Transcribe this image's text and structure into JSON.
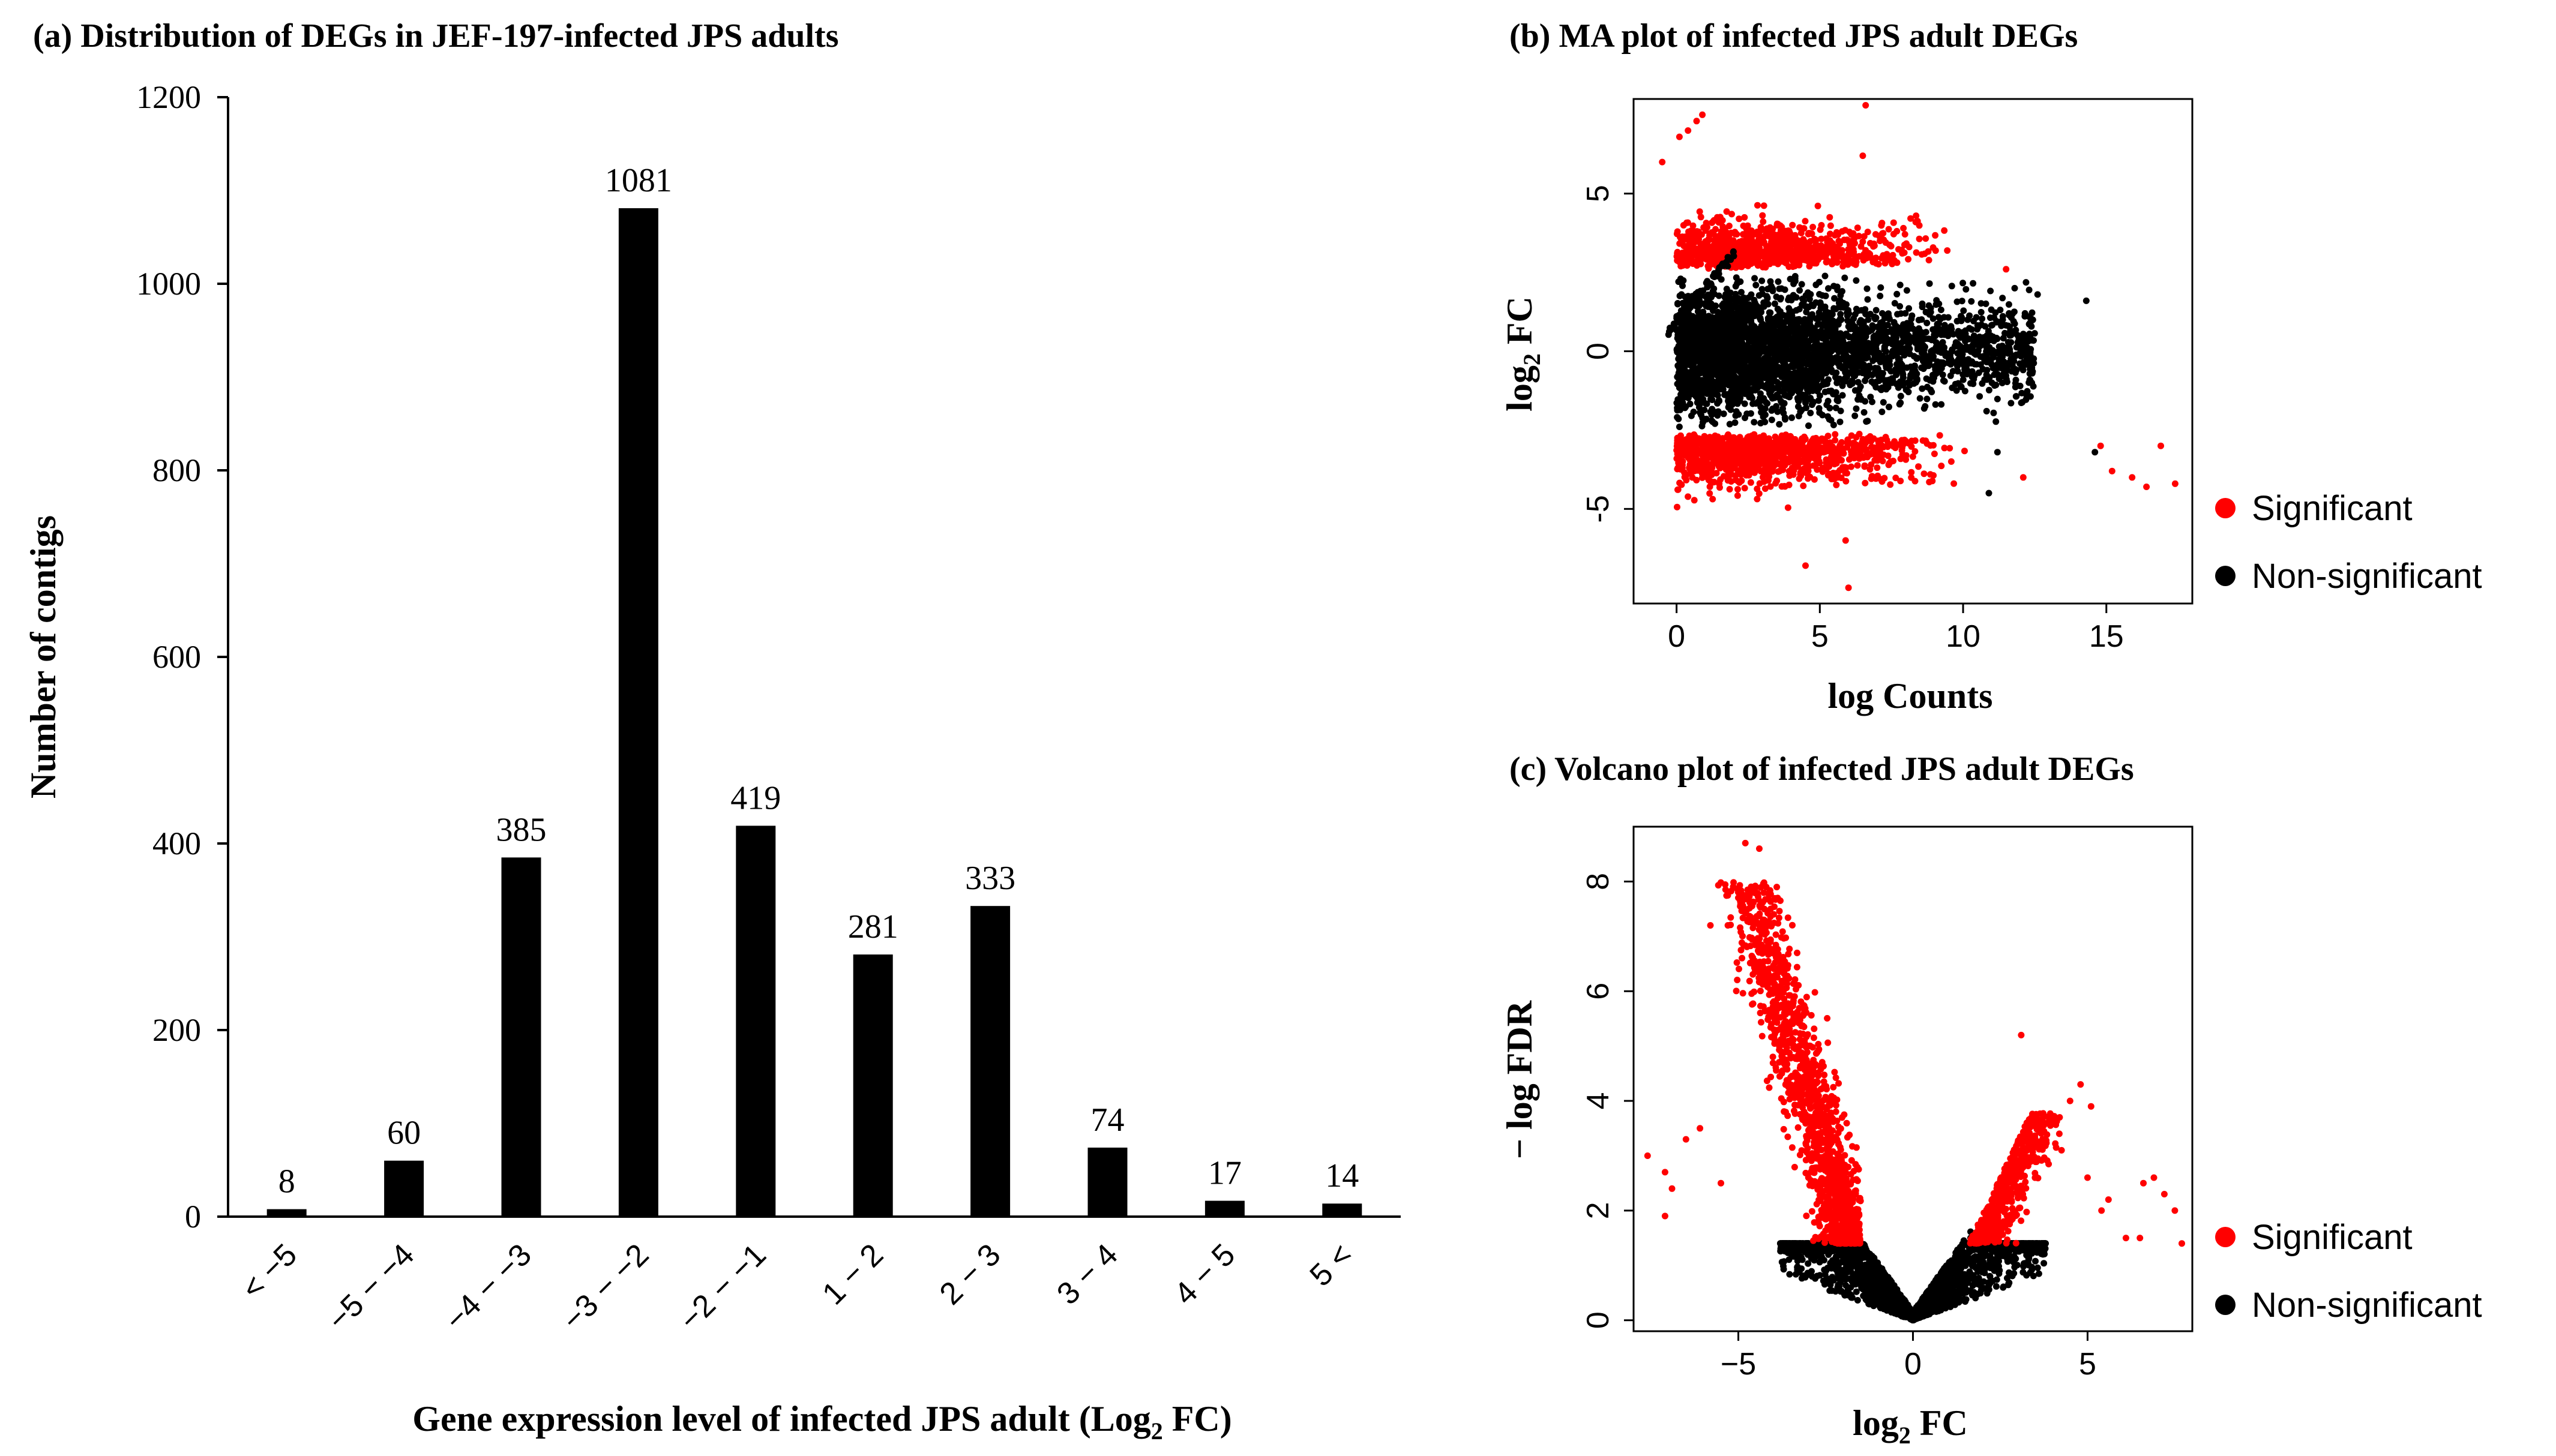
{
  "chart_data": [
    {
      "id": "a",
      "type": "bar",
      "title": "(a) Distribution of DEGs in JEF-197-infected JPS adults",
      "xlabel": "Gene expression level of infected JPS adult (Log2 FC)",
      "xlabel_parts": {
        "pre": "Gene expression level of infected JPS adult (Log",
        "sub": "2",
        "post": " FC)"
      },
      "ylabel": "Number of contigs",
      "ylim": [
        0,
        1200
      ],
      "yticks": [
        0,
        200,
        400,
        600,
        800,
        1000,
        1200
      ],
      "categories": [
        "< −5",
        "−5 − −4",
        "−4 − −3",
        "−3 − −2",
        "−2 − −1",
        "1 − 2",
        "2 − 3",
        "3 − 4",
        "4 − 5",
        "5 <"
      ],
      "values": [
        8,
        60,
        385,
        1081,
        419,
        281,
        333,
        74,
        17,
        14
      ],
      "bar_color": "#000000",
      "grid": false
    },
    {
      "id": "b",
      "type": "scatter",
      "title": "(b) MA plot of infected JPS adult DEGs",
      "xlabel": "log Counts",
      "ylabel": "log2 FC",
      "ylabel_parts": {
        "pre": "log",
        "sub": "2",
        "post": " FC"
      },
      "xlim": [
        -1.5,
        18
      ],
      "ylim": [
        -8,
        8
      ],
      "xticks": [
        0,
        5,
        10,
        15
      ],
      "yticks": [
        -5,
        0,
        5
      ],
      "series": [
        {
          "name": "Significant",
          "color": "#ff0000",
          "description": "|log2FC| > ~2.5, mostly at log Counts 0–8"
        },
        {
          "name": "Non-significant",
          "color": "#000000",
          "description": "central cloud near log2FC 0, log Counts 0–13"
        }
      ],
      "outliers_significant": [
        [
          -0.5,
          6.0
        ],
        [
          0.1,
          6.8
        ],
        [
          0.4,
          7.0
        ],
        [
          0.7,
          7.3
        ],
        [
          0.9,
          7.5
        ],
        [
          6.6,
          7.8
        ],
        [
          6.5,
          6.2
        ],
        [
          5.9,
          -6.0
        ],
        [
          6.0,
          -7.5
        ],
        [
          4.5,
          -6.8
        ],
        [
          11.5,
          2.6
        ],
        [
          14.8,
          -3.0
        ],
        [
          15.2,
          -3.8
        ],
        [
          15.9,
          -4.0
        ],
        [
          16.4,
          -4.3
        ],
        [
          16.9,
          -3.0
        ],
        [
          17.4,
          -4.2
        ],
        [
          12.1,
          -4.0
        ]
      ],
      "outliers_nonsignificant": [
        [
          12.6,
          1.8
        ],
        [
          12.4,
          -1.0
        ],
        [
          14.3,
          1.6
        ],
        [
          14.6,
          -3.2
        ],
        [
          11.2,
          -3.2
        ],
        [
          10.9,
          -4.5
        ],
        [
          11.8,
          2.0
        ]
      ],
      "legend": [
        "Significant",
        "Non-significant"
      ]
    },
    {
      "id": "c",
      "type": "scatter",
      "title": "(c) Volcano plot of infected JPS adult DEGs",
      "xlabel": "log2 FC",
      "xlabel_parts": {
        "pre": "log",
        "sub": "2",
        "post": " FC"
      },
      "ylabel": "− log FDR",
      "xlim": [
        -8,
        8
      ],
      "ylim": [
        -0.2,
        9
      ],
      "xticks": [
        -5,
        0,
        5
      ],
      "yticks": [
        0,
        2,
        4,
        6,
        8
      ],
      "significance_threshold_neglogFDR": 1.4,
      "series": [
        {
          "name": "Significant",
          "color": "#ff0000",
          "description": "−log FDR ≥ 1.4 and |log2FC| ≥ 1.5"
        },
        {
          "name": "Non-significant",
          "color": "#000000",
          "description": "V-shaped base below threshold"
        }
      ],
      "outliers_significant": [
        [
          -4.8,
          8.7
        ],
        [
          -4.4,
          8.6
        ],
        [
          -4.2,
          7.9
        ],
        [
          -3.9,
          7.9
        ],
        [
          -5.8,
          7.2
        ],
        [
          -5.3,
          7.2
        ],
        [
          -7.6,
          3.0
        ],
        [
          -6.5,
          3.3
        ],
        [
          -7.1,
          2.7
        ],
        [
          -6.9,
          2.4
        ],
        [
          -6.1,
          3.5
        ],
        [
          -5.5,
          2.5
        ],
        [
          3.1,
          5.2
        ],
        [
          4.8,
          4.3
        ],
        [
          5.1,
          3.9
        ],
        [
          4.5,
          4.0
        ],
        [
          5.0,
          2.6
        ],
        [
          5.6,
          2.2
        ],
        [
          6.1,
          1.5
        ],
        [
          6.5,
          1.5
        ],
        [
          6.6,
          2.5
        ],
        [
          7.2,
          2.3
        ],
        [
          7.5,
          2.0
        ],
        [
          7.7,
          1.4
        ],
        [
          6.9,
          2.6
        ],
        [
          5.4,
          2.0
        ],
        [
          4.2,
          3.7
        ],
        [
          -7.1,
          1.9
        ]
      ],
      "legend": [
        "Significant",
        "Non-significant"
      ]
    }
  ]
}
